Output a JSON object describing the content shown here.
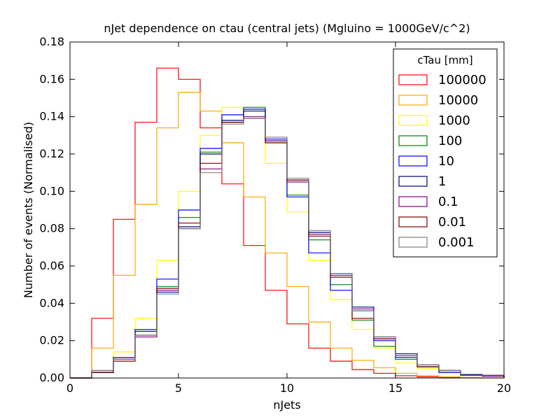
{
  "chart_data": {
    "type": "line",
    "title": "nJet dependence on ctau (central jets) (Mgluino = 1000GeV/c^2)",
    "xlabel": "nJets",
    "ylabel": "Number of events (Normalised)",
    "xlim": [
      0,
      20
    ],
    "ylim": [
      0,
      0.18
    ],
    "xticks": [
      0,
      5,
      10,
      15,
      20
    ],
    "yticks": [
      0.0,
      0.02,
      0.04,
      0.06,
      0.08,
      0.1,
      0.12,
      0.14,
      0.16,
      0.18
    ],
    "grid": false,
    "legend_title": "cTau [mm]",
    "legend_position": "top-right",
    "bin_edges": [
      0,
      1,
      2,
      3,
      4,
      5,
      6,
      7,
      8,
      9,
      10,
      11,
      12,
      13,
      14,
      15,
      16,
      17,
      18,
      19,
      20
    ],
    "series": [
      {
        "name": "100000",
        "color": "#ff0000",
        "values": [
          0,
          0.032,
          0.085,
          0.137,
          0.166,
          0.16,
          0.134,
          0.104,
          0.071,
          0.047,
          0.029,
          0.016,
          0.009,
          0.0045,
          0.0025,
          0.0012,
          0.0006,
          0.0003,
          0.0001,
          0.0001
        ]
      },
      {
        "name": "10000",
        "color": "#ffa500",
        "values": [
          0,
          0.016,
          0.055,
          0.093,
          0.134,
          0.153,
          0.143,
          0.126,
          0.097,
          0.067,
          0.049,
          0.03,
          0.016,
          0.0095,
          0.0055,
          0.0025,
          0.0012,
          0.0006,
          0.0003,
          0.0001
        ]
      },
      {
        "name": "1000",
        "color": "#ffff00",
        "values": [
          0,
          0.004,
          0.014,
          0.032,
          0.063,
          0.1,
          0.13,
          0.145,
          0.144,
          0.115,
          0.089,
          0.063,
          0.042,
          0.026,
          0.016,
          0.008,
          0.005,
          0.003,
          0.0015,
          0.001
        ]
      },
      {
        "name": "100",
        "color": "#008000",
        "values": [
          0,
          0.003,
          0.01,
          0.023,
          0.049,
          0.086,
          0.121,
          0.137,
          0.145,
          0.126,
          0.098,
          0.074,
          0.05,
          0.031,
          0.017,
          0.01,
          0.006,
          0.003,
          0.0015,
          0.001
        ]
      },
      {
        "name": "10",
        "color": "#0000ff",
        "values": [
          0,
          0.003,
          0.011,
          0.026,
          0.053,
          0.09,
          0.123,
          0.141,
          0.144,
          0.128,
          0.097,
          0.067,
          0.047,
          0.036,
          0.02,
          0.011,
          0.006,
          0.003,
          0.0015,
          0.001
        ]
      },
      {
        "name": "1",
        "color": "#000080",
        "values": [
          0,
          0.003,
          0.01,
          0.025,
          0.046,
          0.081,
          0.12,
          0.138,
          0.143,
          0.127,
          0.106,
          0.078,
          0.056,
          0.038,
          0.022,
          0.013,
          0.007,
          0.004,
          0.002,
          0.001
        ]
      },
      {
        "name": "0.1",
        "color": "#800080",
        "values": [
          0,
          0.004,
          0.011,
          0.022,
          0.047,
          0.08,
          0.112,
          0.137,
          0.14,
          0.127,
          0.105,
          0.077,
          0.055,
          0.037,
          0.021,
          0.012,
          0.007,
          0.004,
          0.002,
          0.001
        ]
      },
      {
        "name": "0.01",
        "color": "#800000",
        "values": [
          0,
          0.003,
          0.009,
          0.023,
          0.048,
          0.083,
          0.115,
          0.137,
          0.139,
          0.126,
          0.106,
          0.076,
          0.054,
          0.032,
          0.021,
          0.012,
          0.006,
          0.004,
          0.002,
          0.0015
        ]
      },
      {
        "name": "0.001",
        "color": "#808080",
        "values": [
          0,
          0.004,
          0.01,
          0.023,
          0.045,
          0.08,
          0.11,
          0.136,
          0.139,
          0.129,
          0.107,
          0.079,
          0.056,
          0.036,
          0.022,
          0.012,
          0.007,
          0.004,
          0.002,
          0.0015
        ]
      }
    ]
  }
}
